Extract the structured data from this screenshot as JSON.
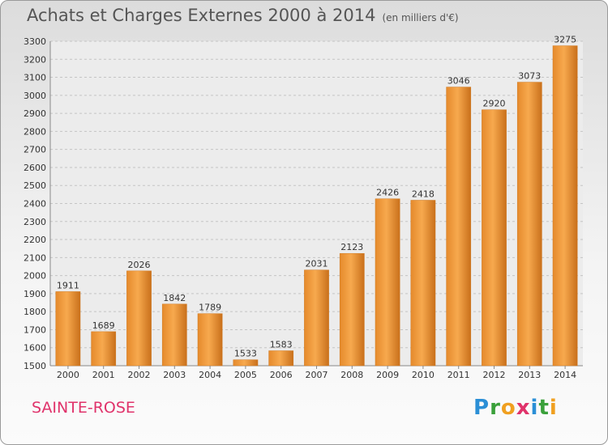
{
  "header": {
    "title": "Achats et Charges Externes 2000 à 2014",
    "unit": "(en milliers d'€)"
  },
  "footer": {
    "place": "SAINTE-ROSE",
    "brand": "Proxiti"
  },
  "colors": {
    "bar": "#e58a2c",
    "bar_light": "#f7a94e",
    "place": "#e0336b"
  },
  "chart_data": {
    "type": "bar",
    "title": "Achats et Charges Externes 2000 à 2014",
    "subtitle": "(en milliers d'€)",
    "categories": [
      "2000",
      "2001",
      "2002",
      "2003",
      "2004",
      "2005",
      "2006",
      "2007",
      "2008",
      "2009",
      "2010",
      "2011",
      "2012",
      "2013",
      "2014"
    ],
    "values": [
      1911,
      1689,
      2026,
      1842,
      1789,
      1533,
      1583,
      2031,
      2123,
      2426,
      2418,
      3046,
      2920,
      3073,
      3275
    ],
    "ylim": [
      1500,
      3300
    ],
    "yticks": [
      1500,
      1600,
      1700,
      1800,
      1900,
      2000,
      2100,
      2200,
      2300,
      2400,
      2500,
      2600,
      2700,
      2800,
      2900,
      3000,
      3100,
      3200,
      3300
    ],
    "grid": true
  }
}
